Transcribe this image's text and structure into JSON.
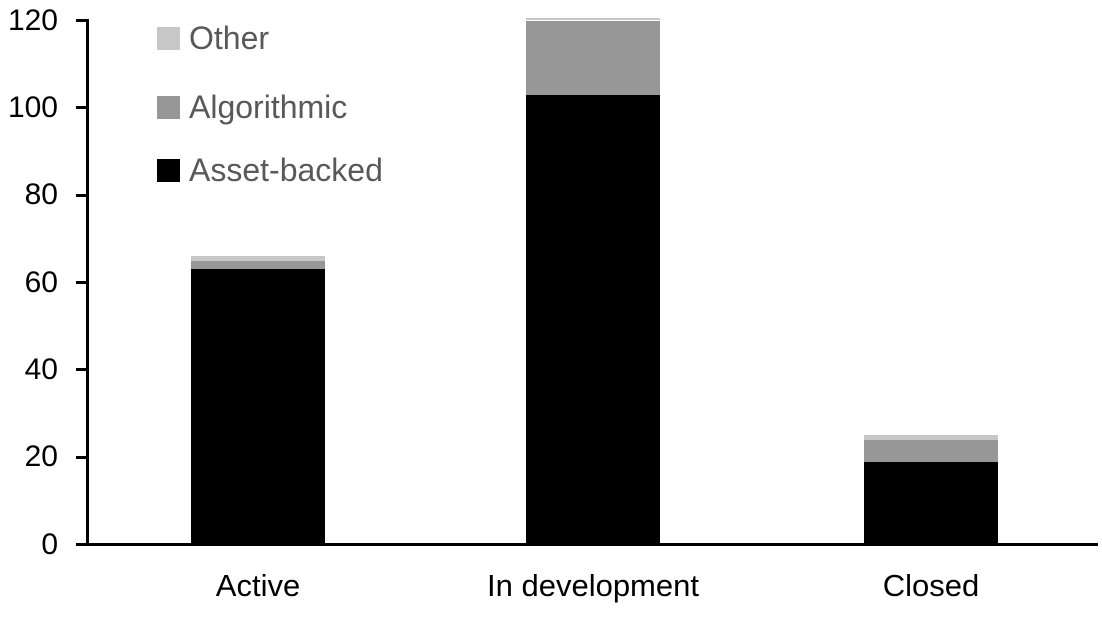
{
  "chart_data": {
    "type": "bar",
    "stacked": true,
    "title": "",
    "categories": [
      "Active",
      "In development",
      "Closed"
    ],
    "series": [
      {
        "name": "Asset-backed",
        "color": "#000000",
        "values": [
          63,
          103,
          19
        ]
      },
      {
        "name": "Algorithmic",
        "color": "#979797",
        "values": [
          2,
          17,
          5
        ]
      },
      {
        "name": "Other",
        "color": "#c7c7c7",
        "values": [
          1,
          0.5,
          1
        ]
      }
    ],
    "xlabel": "",
    "ylabel": "",
    "ylim": [
      0,
      120
    ],
    "yticks": [
      0,
      20,
      40,
      60,
      80,
      100,
      120
    ],
    "grid": false,
    "legend_position": "upper-left-inside"
  },
  "legend": {
    "items": [
      {
        "label": "Other",
        "color": "#c7c7c7"
      },
      {
        "label": "Algorithmic",
        "color": "#979797"
      },
      {
        "label": "Asset-backed",
        "color": "#000000"
      }
    ]
  },
  "colors": {
    "background": "#ffffff",
    "axis": "#000000",
    "legend_text": "#595959"
  }
}
